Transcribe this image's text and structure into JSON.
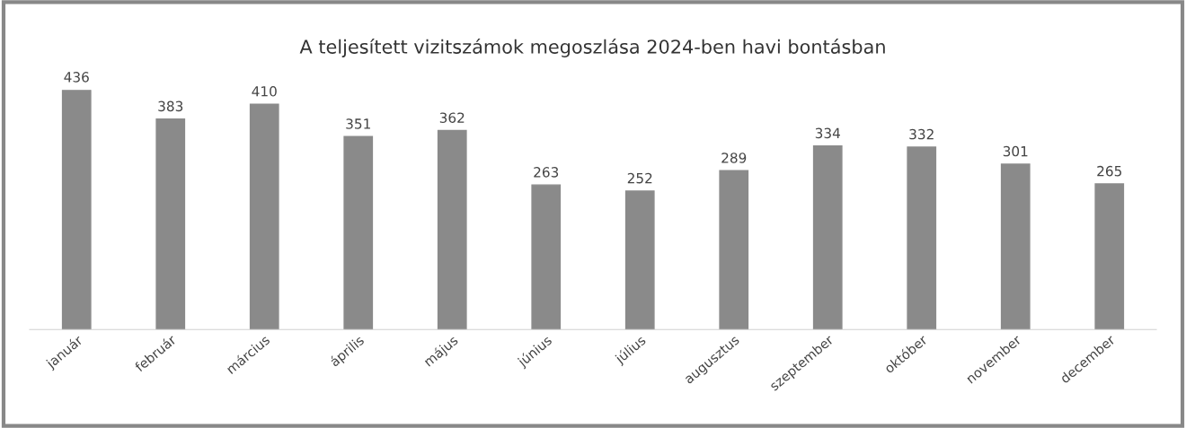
{
  "chart_data": {
    "type": "bar",
    "title": "A teljesített vizitszámok megoszlása 2024-ben havi bontásban",
    "categories": [
      "január",
      "február",
      "március",
      "április",
      "május",
      "június",
      "július",
      "augusztus",
      "szeptember",
      "október",
      "november",
      "december"
    ],
    "values": [
      436,
      383,
      410,
      351,
      362,
      263,
      252,
      289,
      334,
      332,
      301,
      265
    ],
    "color": "#8a8a8a",
    "data_labels": true,
    "grid": false,
    "legend": false
  }
}
